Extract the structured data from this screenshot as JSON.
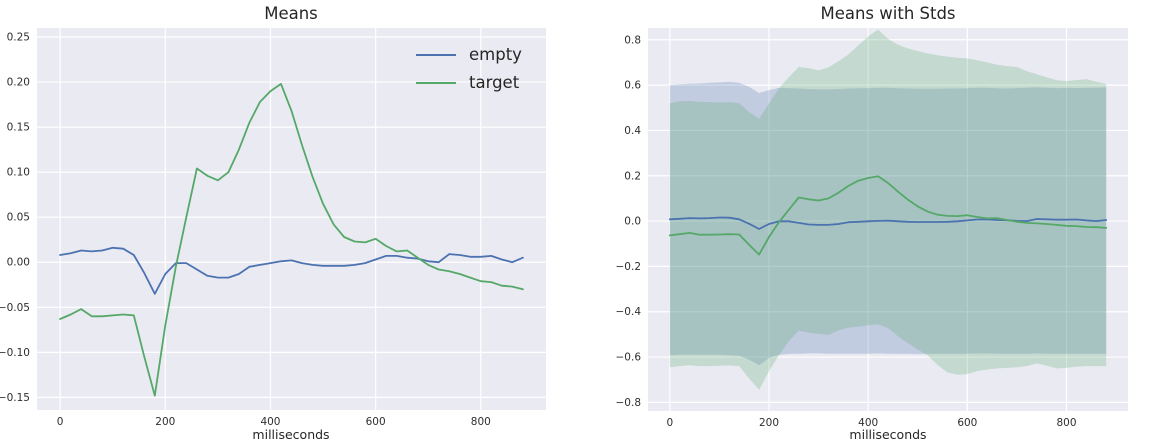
{
  "colors": {
    "figure_bg": "#ffffff",
    "plot_bg": "#eaeaf2",
    "grid": "#ffffff",
    "text": "#262626",
    "empty_series": "#4c72b0",
    "target_series": "#55a868",
    "band_opacity": 0.25
  },
  "chart_data": [
    {
      "type": "line",
      "title": "Means",
      "xlabel": "milliseconds",
      "ylabel": "",
      "grid": true,
      "show_bands": false,
      "legend": {
        "visible": true,
        "position": "upper right",
        "frame": false
      },
      "xlim": [
        -44,
        924
      ],
      "ylim": [
        -0.164,
        0.26
      ],
      "x_ticks": [
        0,
        200,
        400,
        600,
        800
      ],
      "y_ticks": [
        -0.15,
        -0.1,
        -0.05,
        0.0,
        0.05,
        0.1,
        0.15,
        0.2,
        0.25
      ],
      "y_tick_decimals": 2,
      "x": [
        0,
        20,
        40,
        60,
        80,
        100,
        120,
        140,
        160,
        180,
        200,
        220,
        240,
        260,
        280,
        300,
        320,
        340,
        360,
        380,
        400,
        420,
        440,
        460,
        480,
        500,
        520,
        540,
        560,
        580,
        600,
        620,
        640,
        660,
        680,
        700,
        720,
        740,
        760,
        780,
        800,
        820,
        840,
        860,
        880
      ],
      "series": [
        {
          "name": "empty",
          "color": "#4c72b0",
          "values": [
            0.008,
            0.01,
            0.013,
            0.012,
            0.013,
            0.016,
            0.015,
            0.008,
            -0.012,
            -0.035,
            -0.013,
            -0.001,
            -0.001,
            -0.008,
            -0.015,
            -0.017,
            -0.017,
            -0.013,
            -0.005,
            -0.003,
            -0.001,
            0.001,
            0.002,
            -0.001,
            -0.003,
            -0.004,
            -0.004,
            -0.004,
            -0.003,
            -0.001,
            0.003,
            0.007,
            0.007,
            0.005,
            0.004,
            0.001,
            0.0,
            0.009,
            0.008,
            0.006,
            0.006,
            0.007,
            0.003,
            0.0,
            0.005
          ]
        },
        {
          "name": "target",
          "color": "#55a868",
          "values": [
            -0.063,
            -0.058,
            -0.052,
            -0.06,
            -0.06,
            -0.059,
            -0.058,
            -0.059,
            -0.105,
            -0.148,
            -0.07,
            -0.005,
            0.05,
            0.104,
            0.096,
            0.091,
            0.1,
            0.125,
            0.155,
            0.178,
            0.19,
            0.198,
            0.168,
            0.13,
            0.095,
            0.065,
            0.042,
            0.028,
            0.023,
            0.022,
            0.026,
            0.018,
            0.012,
            0.013,
            0.005,
            -0.003,
            -0.008,
            -0.01,
            -0.013,
            -0.017,
            -0.021,
            -0.022,
            -0.026,
            -0.027,
            -0.03
          ]
        }
      ]
    },
    {
      "type": "line",
      "title": "Means with Stds",
      "xlabel": "milliseconds",
      "ylabel": "",
      "grid": true,
      "show_bands": true,
      "legend": {
        "visible": false
      },
      "xlim": [
        -44,
        924
      ],
      "ylim": [
        -0.838,
        0.852
      ],
      "x_ticks": [
        0,
        200,
        400,
        600,
        800
      ],
      "y_ticks": [
        -0.8,
        -0.6,
        -0.4,
        -0.2,
        0.0,
        0.2,
        0.4,
        0.6,
        0.8
      ],
      "y_tick_decimals": 1,
      "x": [
        0,
        20,
        40,
        60,
        80,
        100,
        120,
        140,
        160,
        180,
        200,
        220,
        240,
        260,
        280,
        300,
        320,
        340,
        360,
        380,
        400,
        420,
        440,
        460,
        480,
        500,
        520,
        540,
        560,
        580,
        600,
        620,
        640,
        660,
        680,
        700,
        720,
        740,
        760,
        780,
        800,
        820,
        840,
        860,
        880
      ],
      "series": [
        {
          "name": "empty",
          "color": "#4c72b0",
          "values": [
            0.008,
            0.01,
            0.013,
            0.012,
            0.013,
            0.016,
            0.015,
            0.008,
            -0.012,
            -0.035,
            -0.013,
            -0.001,
            -0.001,
            -0.008,
            -0.015,
            -0.017,
            -0.017,
            -0.013,
            -0.005,
            -0.003,
            -0.001,
            0.001,
            0.002,
            -0.001,
            -0.003,
            -0.004,
            -0.004,
            -0.004,
            -0.003,
            -0.001,
            0.003,
            0.007,
            0.007,
            0.005,
            0.004,
            0.001,
            0.0,
            0.009,
            0.008,
            0.006,
            0.006,
            0.007,
            0.003,
            0.0,
            0.005
          ],
          "band_upper": [
            0.6,
            0.603,
            0.606,
            0.607,
            0.61,
            0.612,
            0.615,
            0.61,
            0.592,
            0.565,
            0.578,
            0.588,
            0.587,
            0.585,
            0.583,
            0.581,
            0.581,
            0.583,
            0.585,
            0.586,
            0.587,
            0.588,
            0.588,
            0.586,
            0.585,
            0.584,
            0.584,
            0.584,
            0.585,
            0.585,
            0.586,
            0.588,
            0.588,
            0.586,
            0.585,
            0.587,
            0.588,
            0.59,
            0.588,
            0.586,
            0.588,
            0.587,
            0.588,
            0.588,
            0.59
          ],
          "band_lower": [
            -0.592,
            -0.59,
            -0.589,
            -0.59,
            -0.59,
            -0.59,
            -0.592,
            -0.594,
            -0.612,
            -0.636,
            -0.604,
            -0.59,
            -0.586,
            -0.585,
            -0.584,
            -0.584,
            -0.585,
            -0.585,
            -0.585,
            -0.585,
            -0.585,
            -0.584,
            -0.585,
            -0.586,
            -0.586,
            -0.587,
            -0.586,
            -0.586,
            -0.586,
            -0.586,
            -0.585,
            -0.584,
            -0.584,
            -0.585,
            -0.585,
            -0.586,
            -0.586,
            -0.584,
            -0.585,
            -0.585,
            -0.585,
            -0.586,
            -0.586,
            -0.586,
            -0.585
          ]
        },
        {
          "name": "target",
          "color": "#55a868",
          "values": [
            -0.063,
            -0.058,
            -0.052,
            -0.06,
            -0.06,
            -0.059,
            -0.058,
            -0.059,
            -0.105,
            -0.148,
            -0.07,
            -0.005,
            0.05,
            0.104,
            0.096,
            0.091,
            0.1,
            0.125,
            0.155,
            0.178,
            0.19,
            0.198,
            0.168,
            0.13,
            0.095,
            0.065,
            0.042,
            0.028,
            0.023,
            0.022,
            0.026,
            0.018,
            0.012,
            0.013,
            0.005,
            -0.003,
            -0.008,
            -0.01,
            -0.013,
            -0.017,
            -0.021,
            -0.022,
            -0.026,
            -0.027,
            -0.03
          ],
          "band_upper": [
            0.52,
            0.528,
            0.53,
            0.526,
            0.525,
            0.523,
            0.525,
            0.52,
            0.48,
            0.452,
            0.52,
            0.585,
            0.635,
            0.68,
            0.675,
            0.665,
            0.678,
            0.705,
            0.735,
            0.775,
            0.815,
            0.845,
            0.805,
            0.778,
            0.762,
            0.75,
            0.74,
            0.732,
            0.726,
            0.721,
            0.718,
            0.71,
            0.7,
            0.69,
            0.684,
            0.68,
            0.662,
            0.648,
            0.634,
            0.622,
            0.618,
            0.622,
            0.626,
            0.615,
            0.605
          ],
          "band_lower": [
            -0.645,
            -0.64,
            -0.636,
            -0.64,
            -0.64,
            -0.638,
            -0.637,
            -0.64,
            -0.695,
            -0.745,
            -0.662,
            -0.592,
            -0.53,
            -0.484,
            -0.492,
            -0.498,
            -0.502,
            -0.482,
            -0.47,
            -0.466,
            -0.46,
            -0.456,
            -0.472,
            -0.508,
            -0.538,
            -0.568,
            -0.592,
            -0.635,
            -0.668,
            -0.678,
            -0.675,
            -0.662,
            -0.655,
            -0.65,
            -0.648,
            -0.645,
            -0.64,
            -0.628,
            -0.638,
            -0.65,
            -0.648,
            -0.642,
            -0.64,
            -0.64,
            -0.64
          ]
        }
      ]
    }
  ]
}
